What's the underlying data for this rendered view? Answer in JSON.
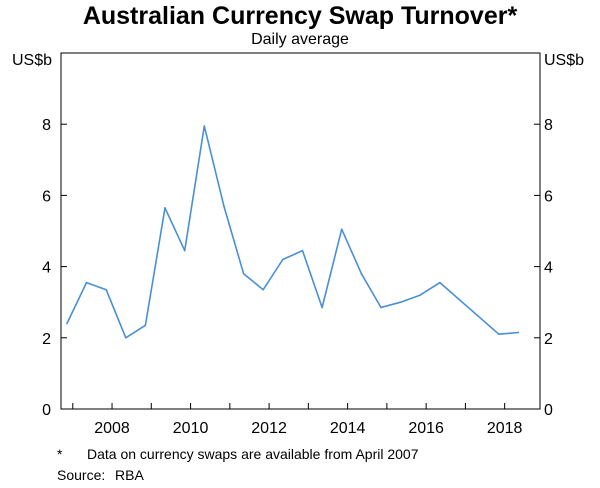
{
  "title": "Australian Currency Swap Turnover*",
  "subtitle": "Daily average",
  "footnote": {
    "marker": "*",
    "text": "Data on currency swaps are available from April 2007"
  },
  "source": {
    "label": "Source:",
    "value": "RBA"
  },
  "chart_data": {
    "type": "line",
    "y_unit": "US$b",
    "ylim": [
      0,
      10
    ],
    "y_ticks": [
      0,
      2,
      4,
      6,
      8
    ],
    "xlim": [
      2006.7,
      2018.9
    ],
    "x_ticks": [
      2008,
      2010,
      2012,
      2014,
      2016,
      2018
    ],
    "grid": false,
    "series": [
      {
        "color": "#4a8fd6",
        "x": [
          2006.85,
          2007.35,
          2007.85,
          2008.35,
          2008.85,
          2009.35,
          2009.85,
          2010.35,
          2010.85,
          2011.35,
          2011.85,
          2012.35,
          2012.85,
          2013.35,
          2013.85,
          2014.35,
          2014.85,
          2015.35,
          2015.85,
          2016.35,
          2017.85,
          2018.35
        ],
        "values": [
          2.4,
          3.55,
          3.35,
          2.0,
          2.35,
          5.65,
          4.45,
          7.95,
          5.7,
          3.8,
          3.35,
          4.2,
          4.45,
          2.85,
          5.05,
          3.8,
          2.85,
          3.0,
          3.2,
          3.55,
          2.1,
          2.15
        ]
      }
    ]
  }
}
